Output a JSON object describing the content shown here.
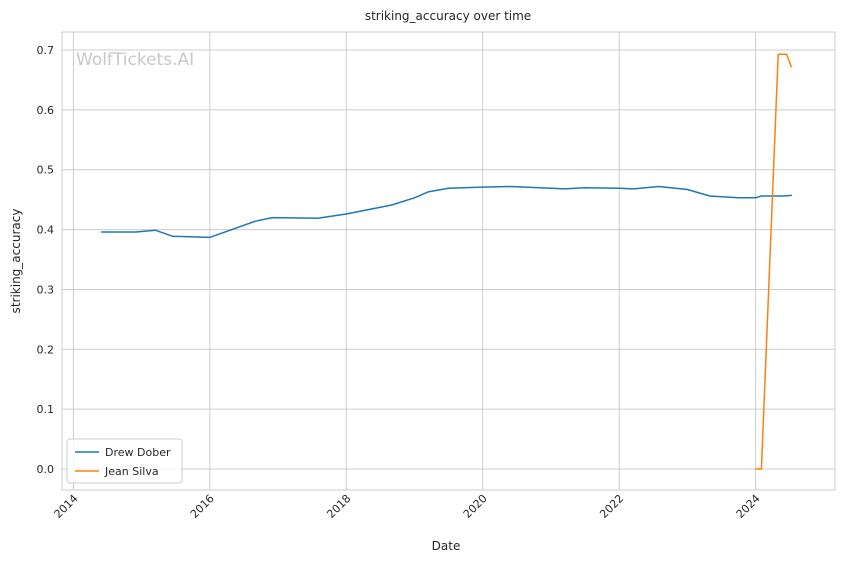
{
  "watermark": "WolfTickets.AI",
  "chart_data": {
    "type": "line",
    "title": "striking_accuracy over time",
    "xlabel": "Date",
    "ylabel": "striking_accuracy",
    "xlim": [
      "2013-11-01",
      "2025-03-01"
    ],
    "ylim": [
      -0.035,
      0.73
    ],
    "x_ticks": [
      "2014",
      "2016",
      "2018",
      "2020",
      "2022",
      "2024"
    ],
    "y_ticks": [
      "0.0",
      "0.1",
      "0.2",
      "0.3",
      "0.4",
      "0.5",
      "0.6",
      "0.7"
    ],
    "grid": true,
    "legend_position": "lower-left",
    "series": [
      {
        "name": "Drew Dober",
        "color": "#1f77b4",
        "points": [
          [
            "2014-06-01",
            0.396
          ],
          [
            "2014-12-01",
            0.396
          ],
          [
            "2015-03-15",
            0.399
          ],
          [
            "2015-06-15",
            0.389
          ],
          [
            "2016-01-01",
            0.387
          ],
          [
            "2016-09-01",
            0.414
          ],
          [
            "2016-12-01",
            0.42
          ],
          [
            "2017-08-01",
            0.419
          ],
          [
            "2018-01-01",
            0.426
          ],
          [
            "2018-09-01",
            0.441
          ],
          [
            "2019-01-01",
            0.453
          ],
          [
            "2019-03-15",
            0.463
          ],
          [
            "2019-07-01",
            0.469
          ],
          [
            "2020-01-01",
            0.471
          ],
          [
            "2020-06-01",
            0.472
          ],
          [
            "2021-01-01",
            0.469
          ],
          [
            "2021-03-15",
            0.468
          ],
          [
            "2021-07-01",
            0.47
          ],
          [
            "2022-01-01",
            0.469
          ],
          [
            "2022-03-15",
            0.468
          ],
          [
            "2022-08-01",
            0.472
          ],
          [
            "2023-01-01",
            0.467
          ],
          [
            "2023-05-01",
            0.456
          ],
          [
            "2023-10-01",
            0.453
          ],
          [
            "2024-01-01",
            0.453
          ],
          [
            "2024-02-01",
            0.456
          ],
          [
            "2024-06-01",
            0.456
          ],
          [
            "2024-07-10",
            0.457
          ]
        ]
      },
      {
        "name": "Jean Silva",
        "color": "#ff7f0e",
        "points": [
          [
            "2024-01-01",
            0.0
          ],
          [
            "2024-02-01",
            0.0
          ],
          [
            "2024-05-01",
            0.693
          ],
          [
            "2024-06-15",
            0.693
          ],
          [
            "2024-07-10",
            0.672
          ]
        ]
      }
    ]
  }
}
